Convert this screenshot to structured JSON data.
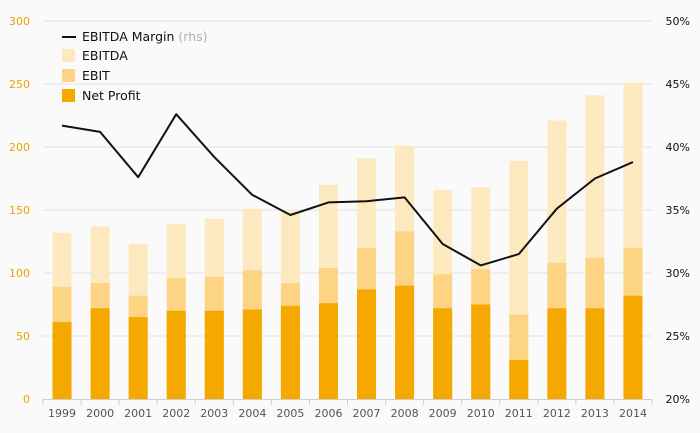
{
  "chart_data": {
    "type": "bar",
    "stacked_overlay": true,
    "categories": [
      "1999",
      "2000",
      "2001",
      "2002",
      "2003",
      "2004",
      "2005",
      "2006",
      "2007",
      "2008",
      "2009",
      "2010",
      "2011",
      "2012",
      "2013",
      "2014"
    ],
    "series": [
      {
        "name": "EBITDA",
        "kind": "bar",
        "color": "#fde9bf",
        "values": [
          132,
          137,
          123,
          139,
          143,
          151,
          149,
          170,
          191,
          201,
          166,
          168,
          189,
          221,
          241,
          251
        ]
      },
      {
        "name": "EBIT",
        "kind": "bar",
        "color": "#fcd483",
        "values": [
          89,
          92,
          82,
          96,
          97,
          102,
          92,
          104,
          120,
          133,
          99,
          103,
          67,
          108,
          112,
          120
        ]
      },
      {
        "name": "Net Profit",
        "kind": "bar",
        "color": "#f5a800",
        "values": [
          61,
          72,
          65,
          70,
          70,
          71,
          74,
          76,
          87,
          90,
          72,
          75,
          31,
          72,
          72,
          82
        ]
      },
      {
        "name": "EBITDA Margin",
        "name_suffix": "(rhs)",
        "kind": "line",
        "axis": "right",
        "color": "#111111",
        "values": [
          41.7,
          41.2,
          37.6,
          42.6,
          39.2,
          36.2,
          34.6,
          35.6,
          35.7,
          36.0,
          32.3,
          30.6,
          31.5,
          35.1,
          37.5,
          38.8
        ]
      }
    ],
    "y_left": {
      "ylim": [
        0,
        300
      ],
      "ticks": [
        "0",
        "50",
        "100",
        "150",
        "200",
        "250",
        "300"
      ],
      "tick_color": "#e8a400"
    },
    "y_right": {
      "ylim": [
        20,
        50
      ],
      "ticks": [
        "20%",
        "25%",
        "30%",
        "35%",
        "40%",
        "45%",
        "50%"
      ]
    },
    "legend_position": "top-left",
    "grid": true
  }
}
